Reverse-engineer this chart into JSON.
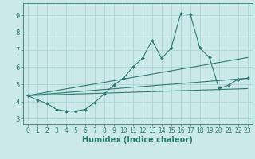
{
  "xlabel": "Humidex (Indice chaleur)",
  "xlim": [
    -0.5,
    23.5
  ],
  "ylim": [
    2.7,
    9.7
  ],
  "yticks": [
    3,
    4,
    5,
    6,
    7,
    8,
    9
  ],
  "xticks": [
    0,
    1,
    2,
    3,
    4,
    5,
    6,
    7,
    8,
    9,
    10,
    11,
    12,
    13,
    14,
    15,
    16,
    17,
    18,
    19,
    20,
    21,
    22,
    23
  ],
  "bg_color": "#cce9e9",
  "grid_color": "#aad4d4",
  "line_color": "#2d7a6e",
  "line1_x": [
    0,
    1,
    2,
    3,
    4,
    5,
    6,
    7,
    8,
    9,
    10,
    11,
    12,
    13,
    14,
    15,
    16,
    17,
    18,
    19,
    20,
    21,
    22,
    23
  ],
  "line1_y": [
    4.35,
    4.1,
    3.9,
    3.55,
    3.45,
    3.45,
    3.55,
    3.95,
    4.45,
    4.95,
    5.35,
    6.0,
    6.5,
    7.55,
    6.5,
    7.1,
    9.1,
    9.05,
    7.1,
    6.55,
    4.75,
    4.95,
    5.3,
    5.35
  ],
  "line2_x": [
    0,
    23
  ],
  "line2_y": [
    4.35,
    5.35
  ],
  "line3_x": [
    0,
    23
  ],
  "line3_y": [
    4.35,
    6.55
  ],
  "line4_x": [
    0,
    23
  ],
  "line4_y": [
    4.35,
    4.75
  ],
  "tick_fontsize": 5.5,
  "xlabel_fontsize": 7.0
}
